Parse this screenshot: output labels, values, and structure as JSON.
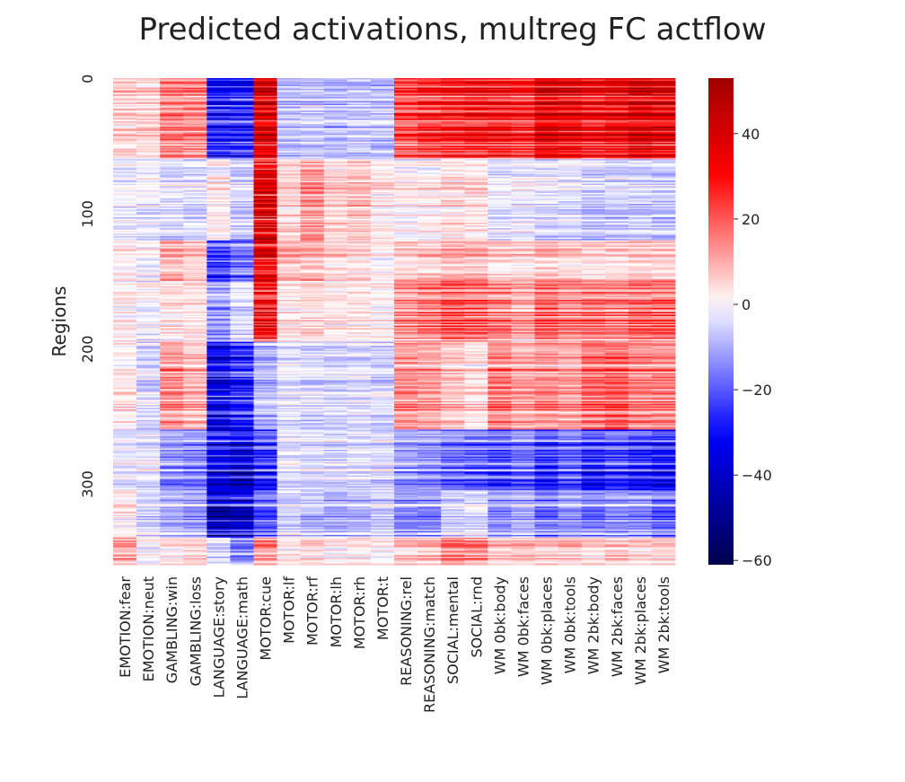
{
  "chart_data": {
    "type": "heatmap",
    "title": "Predicted activations, multreg FC actflow",
    "xlabel": "",
    "ylabel": "Regions",
    "columns": [
      "EMOTION:fear",
      "EMOTION:neut",
      "GAMBLING:win",
      "GAMBLING:loss",
      "LANGUAGE:story",
      "LANGUAGE:math",
      "MOTOR:cue",
      "MOTOR:lf",
      "MOTOR:rf",
      "MOTOR:lh",
      "MOTOR:rh",
      "MOTOR:t",
      "REASONING:rel",
      "REASONING:match",
      "SOCIAL:mental",
      "SOCIAL:rnd",
      "WM 0bk:body",
      "WM 0bk:faces",
      "WM 0bk:places",
      "WM 0bk:tools",
      "WM 2bk:body",
      "WM 2bk:faces",
      "WM 2bk:places",
      "WM 2bk:tools"
    ],
    "n_rows": 360,
    "y_ticks": [
      0,
      100,
      200,
      300
    ],
    "colorbar": {
      "cmap": "seismic",
      "vmin": -61,
      "vmax": 53,
      "ticks": [
        40,
        20,
        0,
        -20,
        -40,
        -60
      ],
      "tick_labels": [
        "40",
        "20",
        "0",
        "−20",
        "−40",
        "−60"
      ]
    },
    "row_bands": [
      {
        "rows": [
          0,
          60
        ],
        "values": [
          6,
          5,
          16,
          15,
          -30,
          -28,
          40,
          -8,
          -7,
          -9,
          -7,
          -8,
          22,
          26,
          28,
          30,
          30,
          28,
          38,
          36,
          32,
          34,
          40,
          38
        ]
      },
      {
        "rows": [
          60,
          120
        ],
        "values": [
          -2,
          -2,
          -4,
          -4,
          2,
          -6,
          40,
          6,
          14,
          6,
          8,
          3,
          1,
          2,
          4,
          4,
          -3,
          -2,
          -4,
          -4,
          -6,
          -6,
          -6,
          -7
        ]
      },
      {
        "rows": [
          120,
          150
        ],
        "values": [
          2,
          0,
          10,
          8,
          -24,
          -18,
          38,
          10,
          10,
          6,
          5,
          2,
          6,
          8,
          10,
          10,
          6,
          6,
          8,
          7,
          5,
          5,
          7,
          6
        ]
      },
      {
        "rows": [
          150,
          195
        ],
        "values": [
          1,
          -1,
          4,
          3,
          -14,
          -5,
          34,
          3,
          5,
          2,
          3,
          1,
          14,
          18,
          22,
          20,
          16,
          12,
          20,
          16,
          18,
          17,
          20,
          20
        ]
      },
      {
        "rows": [
          195,
          260
        ],
        "values": [
          3,
          -4,
          14,
          10,
          -32,
          -26,
          -8,
          -3,
          -4,
          -4,
          -3,
          -4,
          14,
          12,
          8,
          5,
          16,
          12,
          14,
          12,
          18,
          20,
          16,
          16
        ]
      },
      {
        "rows": [
          260,
          305
        ],
        "values": [
          -3,
          -3,
          -14,
          -16,
          -34,
          -38,
          -26,
          -3,
          -4,
          -5,
          -4,
          -5,
          -12,
          -14,
          -18,
          -20,
          -22,
          -18,
          -26,
          -20,
          -28,
          -24,
          -28,
          -30
        ]
      },
      {
        "rows": [
          305,
          340
        ],
        "values": [
          2,
          -6,
          -10,
          -12,
          -40,
          -38,
          -20,
          -6,
          -8,
          -10,
          -8,
          -6,
          -14,
          -14,
          -6,
          -4,
          -14,
          -10,
          -16,
          -12,
          -16,
          -14,
          -14,
          -18
        ]
      },
      {
        "rows": [
          340,
          360
        ],
        "values": [
          10,
          -2,
          2,
          4,
          -6,
          -18,
          14,
          2,
          4,
          0,
          3,
          0,
          6,
          8,
          16,
          14,
          6,
          8,
          6,
          6,
          4,
          6,
          4,
          6
        ]
      }
    ]
  }
}
